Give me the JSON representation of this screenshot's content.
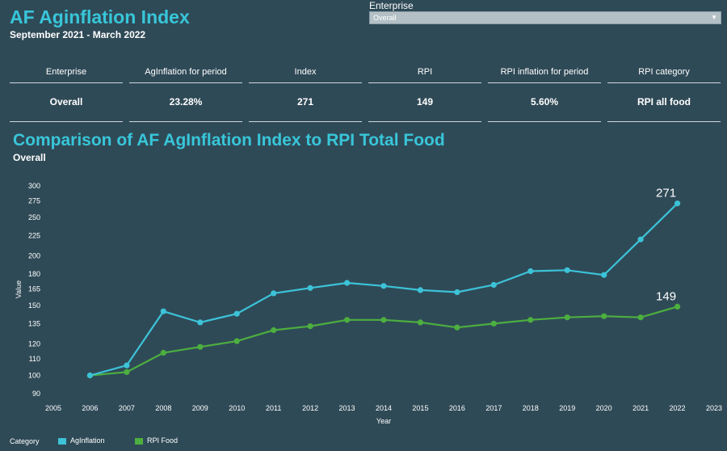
{
  "header": {
    "title": "AF Aginflation Index",
    "period": "September 2021 - March 2022"
  },
  "filter": {
    "label": "Enterprise",
    "selected": "Overall"
  },
  "kpi": {
    "columns": [
      {
        "header": "Enterprise",
        "value": "Overall"
      },
      {
        "header": "AgInflation for period",
        "value": "23.28%"
      },
      {
        "header": "Index",
        "value": "271"
      },
      {
        "header": "RPI",
        "value": "149"
      },
      {
        "header": "RPI inflation for period",
        "value": "5.60%"
      },
      {
        "header": "RPI category",
        "value": "RPI all food"
      }
    ]
  },
  "chart_section": {
    "title": "Comparison of AF AgInflation Index to RPI Total Food",
    "subtitle": "Overall"
  },
  "legend": {
    "title": "Category",
    "items": [
      "AgInflation",
      "RPI Food"
    ]
  },
  "colors": {
    "background": "#2f4a57",
    "accent": "#38c6d9",
    "aginflation": "#3cc3d8",
    "rpi_food": "#4caf3f"
  },
  "chart_data": {
    "type": "line",
    "xlabel": "Year",
    "ylabel": "Value",
    "y_scale": "log",
    "x_ticks": [
      2005,
      2006,
      2007,
      2008,
      2009,
      2010,
      2011,
      2012,
      2013,
      2014,
      2015,
      2016,
      2017,
      2018,
      2019,
      2020,
      2021,
      2022,
      2023
    ],
    "y_ticks": [
      90,
      100,
      110,
      120,
      135,
      150,
      165,
      180,
      200,
      225,
      250,
      275,
      300
    ],
    "xlim": [
      2005,
      2023
    ],
    "ylim": [
      90,
      300
    ],
    "grid": false,
    "legend_position": "bottom-left",
    "x": [
      2006,
      2007,
      2008,
      2009,
      2010,
      2011,
      2012,
      2013,
      2014,
      2015,
      2016,
      2017,
      2018,
      2019,
      2020,
      2021,
      2022
    ],
    "series": [
      {
        "name": "AgInflation",
        "values": [
          100,
          106,
          145,
          136,
          143,
          161,
          166,
          171,
          168,
          164,
          162,
          169,
          183,
          184,
          179,
          220,
          271
        ],
        "end_label": "271"
      },
      {
        "name": "RPI Food",
        "values": [
          100,
          102,
          114,
          118,
          122,
          130,
          133,
          138,
          138,
          136,
          132,
          135,
          138,
          140,
          141,
          140,
          149
        ],
        "end_label": "149"
      }
    ]
  }
}
